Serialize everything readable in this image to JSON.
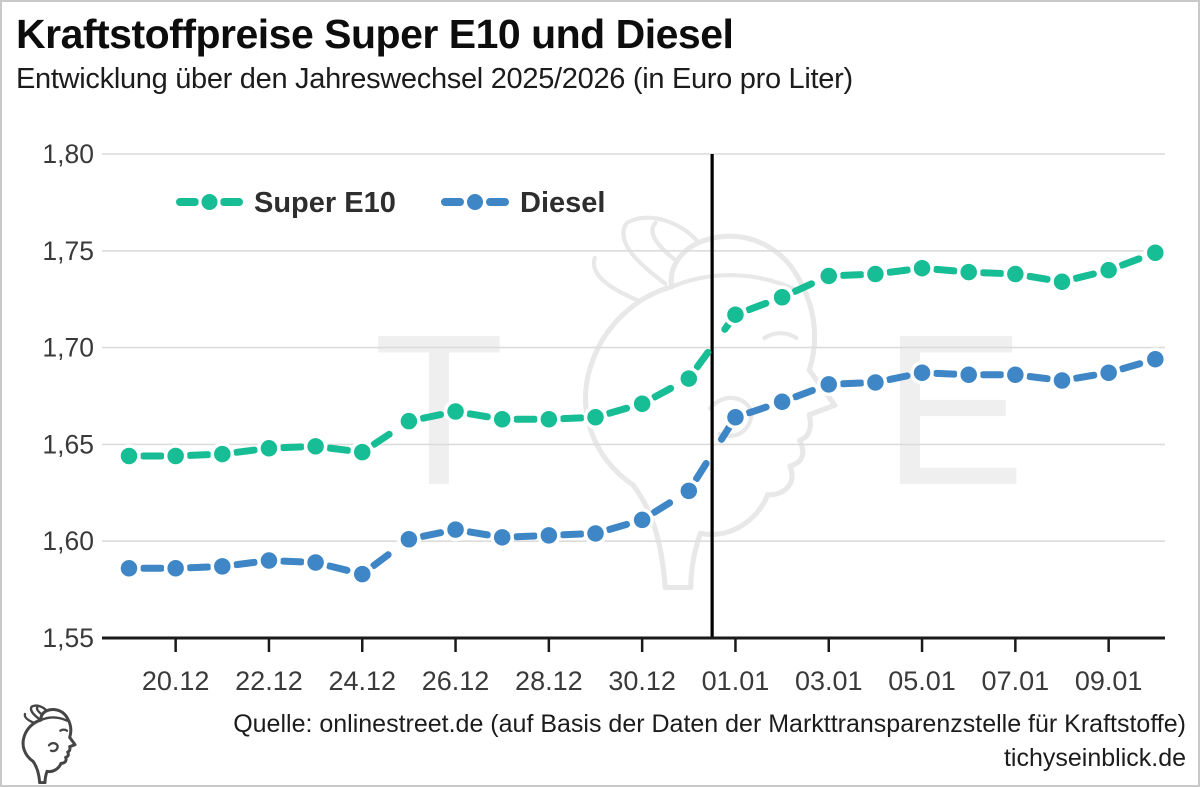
{
  "header": {
    "title": "Kraftstoffpreise Super E10 und Diesel",
    "subtitle": "Entwicklung über den Jahreswechsel 2025/2026 (in Euro pro Liter)"
  },
  "footer": {
    "source": "Quelle: onlinestreet.de (auf Basis der Daten der Markttransparenzstelle für Kraftstoffe)",
    "site": "tichyseinblick.de"
  },
  "watermark": {
    "letters": [
      "T",
      "E"
    ]
  },
  "colors": {
    "super_e10": "#17bd94",
    "diesel": "#3e86c5",
    "grid": "#dcdcdc",
    "axis": "#1a1a1a",
    "tick_text": "#3a3a3a",
    "year_line": "#000000",
    "watermark": "#e8e8e8",
    "legend_text": "#2e2e2e"
  },
  "chart_data": {
    "type": "line",
    "title": "Kraftstoffpreise Super E10 und Diesel",
    "xlabel": "",
    "ylabel": "Euro pro Liter",
    "x": [
      "19.12",
      "20.12",
      "21.12",
      "22.12",
      "23.12",
      "24.12",
      "25.12",
      "26.12",
      "27.12",
      "28.12",
      "29.12",
      "30.12",
      "31.12",
      "01.01",
      "02.01",
      "03.01",
      "04.01",
      "05.01",
      "06.01",
      "07.01",
      "08.01",
      "09.01",
      "10.01"
    ],
    "x_labeled_ticks": [
      "20.12",
      "22.12",
      "24.12",
      "26.12",
      "28.12",
      "30.12",
      "01.01",
      "03.01",
      "05.01",
      "07.01",
      "09.01"
    ],
    "series": [
      {
        "name": "Super E10",
        "color": "#17bd94",
        "values": [
          1.644,
          1.644,
          1.645,
          1.648,
          1.649,
          1.646,
          1.662,
          1.667,
          1.663,
          1.663,
          1.664,
          1.671,
          1.684,
          1.717,
          1.726,
          1.737,
          1.738,
          1.741,
          1.739,
          1.738,
          1.734,
          1.74,
          1.749
        ]
      },
      {
        "name": "Diesel",
        "color": "#3e86c5",
        "values": [
          1.586,
          1.586,
          1.587,
          1.59,
          1.589,
          1.583,
          1.601,
          1.606,
          1.602,
          1.603,
          1.604,
          1.611,
          1.626,
          1.664,
          1.672,
          1.681,
          1.682,
          1.687,
          1.686,
          1.686,
          1.683,
          1.687,
          1.694
        ]
      }
    ],
    "ylim": [
      1.55,
      1.8
    ],
    "y_ticks": [
      1.8,
      1.75,
      1.7,
      1.65,
      1.6,
      1.55
    ],
    "y_tick_labels": [
      "1,80",
      "1,75",
      "1,70",
      "1,65",
      "1,60",
      "1,55"
    ],
    "grid": "horizontal",
    "legend_position": "top-left",
    "year_line_after_index": 12
  }
}
